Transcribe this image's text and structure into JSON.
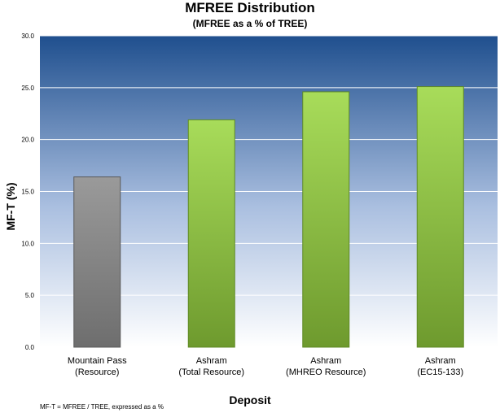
{
  "chart_data": {
    "type": "bar",
    "title": "MFREE Distribution",
    "subtitle": "(MFREE as a % of TREE)",
    "xlabel": "Deposit",
    "ylabel": "MF-T (%)",
    "ylim": [
      0,
      30
    ],
    "yticks": [
      "0.0",
      "5.0",
      "10.0",
      "15.0",
      "20.0",
      "25.0",
      "30.0"
    ],
    "grid": true,
    "categories": [
      [
        "Mountain Pass",
        "(Resource)"
      ],
      [
        "Ashram",
        "(Total Resource)"
      ],
      [
        "Ashram",
        "(MHREO Resource)"
      ],
      [
        "Ashram",
        "(EC15-133)"
      ]
    ],
    "values": [
      16.4,
      21.9,
      24.6,
      25.1
    ],
    "bar_colors": [
      "#808080",
      "#8bbe3c",
      "#8bbe3c",
      "#8bbe3c"
    ],
    "background_top": "#1f4f8e",
    "background_bottom": "#ffffff"
  },
  "footnote": "MF-T = MFREE / TREE, expressed as a %"
}
